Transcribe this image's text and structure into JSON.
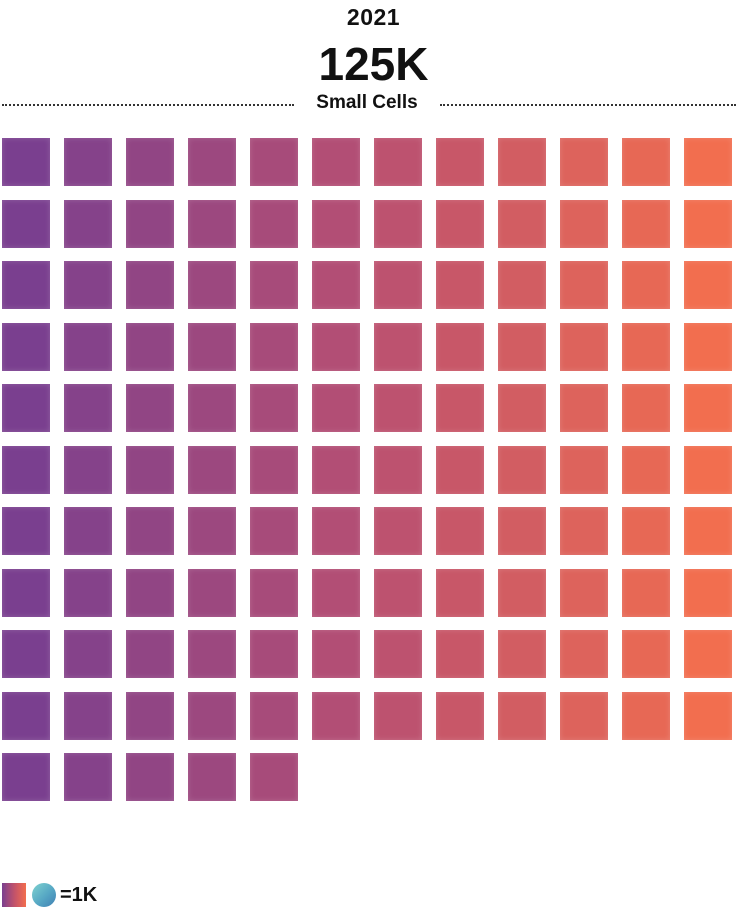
{
  "header": {
    "year": "2021",
    "total": "125K",
    "category": "Small Cells"
  },
  "chart_data": {
    "type": "waffle",
    "year": "2021",
    "total_label": "125K",
    "category": "Small Cells",
    "unit_value": 1,
    "unit_label": "=1K",
    "count": 125,
    "columns": 12,
    "fill_order": "row-major, top-left to right",
    "color_gradient": [
      "#7a3f8f",
      "#b84f72",
      "#f26e4f"
    ]
  },
  "legend": {
    "text": "=1K",
    "square_colors": [
      "#7a3f8f",
      "#c65468",
      "#f26e4f"
    ],
    "circle_colors": [
      "#7fd3d0",
      "#56a7c4",
      "#3f7fb3"
    ]
  }
}
